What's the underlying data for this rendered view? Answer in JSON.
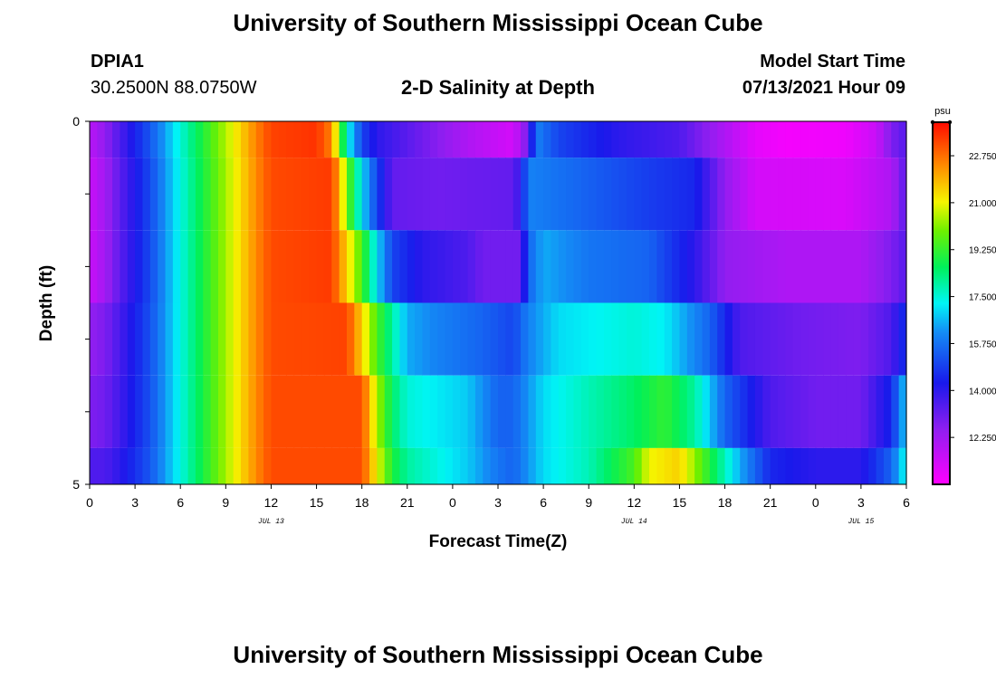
{
  "header": {
    "title": "University of Southern Mississippi Ocean Cube",
    "station_id": "DPIA1",
    "station_coords": "30.2500N  88.0750W",
    "subtitle": "2-D Salinity at Depth",
    "model_start_label": "Model Start Time",
    "model_start_value": "07/13/2021 Hour 09"
  },
  "footer": {
    "title": "University of Southern Mississippi Ocean Cube"
  },
  "chart_data": {
    "type": "heatmap",
    "title": "2-D Salinity at Depth",
    "xlabel": "Forecast Time(Z)",
    "ylabel": "Depth (ft)",
    "x_tick_labels": [
      "0",
      "3",
      "6",
      "9",
      "12",
      "15",
      "18",
      "21",
      "0",
      "3",
      "6",
      "9",
      "12",
      "15",
      "18",
      "21",
      "0",
      "3",
      "6"
    ],
    "date_labels": [
      {
        "label": "JUL 13",
        "hour": 12
      },
      {
        "label": "JUL 14",
        "hour": 36
      },
      {
        "label": "JUL 15",
        "hour": 51
      }
    ],
    "x_range_hours": [
      0,
      54
    ],
    "y_tick_labels": [
      "0",
      "5"
    ],
    "y_range": [
      0,
      5
    ],
    "colorbar": {
      "unit": "psu",
      "range": [
        10.5,
        24.0
      ],
      "tick_labels": [
        "22.750",
        "21.000",
        "19.250",
        "17.500",
        "15.750",
        "14.000",
        "12.250"
      ],
      "tick_values": [
        22.75,
        21.0,
        19.25,
        17.5,
        15.75,
        14.0,
        12.25
      ]
    },
    "layers": [
      {
        "depth_range": [
          0,
          0.5
        ],
        "knots": [
          [
            0,
            11.8
          ],
          [
            1,
            12.5
          ],
          [
            2,
            13.5
          ],
          [
            4,
            15.3
          ],
          [
            6,
            17.5
          ],
          [
            8,
            19.5
          ],
          [
            10,
            21.5
          ],
          [
            11,
            22.5
          ],
          [
            12,
            23.3
          ],
          [
            15,
            23.5
          ],
          [
            16,
            22.5
          ],
          [
            17,
            17.5
          ],
          [
            18,
            15
          ],
          [
            19,
            14
          ],
          [
            22,
            13
          ],
          [
            25,
            12
          ],
          [
            28,
            11.3
          ],
          [
            29,
            13
          ],
          [
            29.5,
            16
          ],
          [
            31,
            15
          ],
          [
            35,
            14
          ],
          [
            39,
            13.5
          ],
          [
            41,
            12.5
          ],
          [
            44,
            11
          ],
          [
            46,
            10.7
          ],
          [
            50,
            10.8
          ],
          [
            52,
            11.5
          ],
          [
            53,
            12.8
          ],
          [
            54,
            13.4
          ]
        ]
      },
      {
        "depth_range": [
          0.5,
          1.5
        ],
        "knots": [
          [
            0,
            11.5
          ],
          [
            1,
            12.2
          ],
          [
            2,
            13.3
          ],
          [
            4,
            15.1
          ],
          [
            6,
            17.4
          ],
          [
            8,
            19.4
          ],
          [
            10,
            21.4
          ],
          [
            11,
            22.4
          ],
          [
            12,
            23.2
          ],
          [
            16,
            23.4
          ],
          [
            16.5,
            22
          ],
          [
            17,
            20
          ],
          [
            18,
            17
          ],
          [
            19,
            15
          ],
          [
            20,
            13.2
          ],
          [
            23,
            13
          ],
          [
            28,
            13.2
          ],
          [
            28.5,
            14
          ],
          [
            29,
            16
          ],
          [
            32,
            15.6
          ],
          [
            36,
            15
          ],
          [
            40,
            14.5
          ],
          [
            42,
            12.5
          ],
          [
            44,
            11.3
          ],
          [
            50,
            11.2
          ],
          [
            53,
            12
          ],
          [
            54,
            13.4
          ]
        ]
      },
      {
        "depth_range": [
          1.5,
          2.5
        ],
        "knots": [
          [
            0,
            11.5
          ],
          [
            1,
            12.2
          ],
          [
            2,
            13.3
          ],
          [
            4,
            15.1
          ],
          [
            6,
            17.4
          ],
          [
            8,
            19.4
          ],
          [
            10,
            21.4
          ],
          [
            11,
            22.4
          ],
          [
            12,
            23.2
          ],
          [
            16,
            23.4
          ],
          [
            17,
            21.5
          ],
          [
            18,
            19.5
          ],
          [
            19,
            17
          ],
          [
            20,
            15
          ],
          [
            22,
            14
          ],
          [
            25,
            13.5
          ],
          [
            26,
            13
          ],
          [
            28.5,
            13
          ],
          [
            29,
            15.5
          ],
          [
            30,
            16.5
          ],
          [
            33,
            15.8
          ],
          [
            37,
            15.5
          ],
          [
            40,
            14
          ],
          [
            42,
            12.5
          ],
          [
            46,
            12
          ],
          [
            51,
            12
          ],
          [
            53,
            12.8
          ],
          [
            54,
            13.4
          ]
        ]
      },
      {
        "depth_range": [
          2.5,
          3.5
        ],
        "knots": [
          [
            0,
            12.5
          ],
          [
            1,
            12.8
          ],
          [
            2,
            13.6
          ],
          [
            4,
            15.2
          ],
          [
            6,
            17.4
          ],
          [
            8,
            19.4
          ],
          [
            10,
            21.4
          ],
          [
            11,
            22.4
          ],
          [
            12,
            23.2
          ],
          [
            17,
            23.3
          ],
          [
            18,
            21.5
          ],
          [
            19,
            19.5
          ],
          [
            20,
            18
          ],
          [
            21,
            16.5
          ],
          [
            23,
            16
          ],
          [
            26,
            15.5
          ],
          [
            28,
            15
          ],
          [
            29,
            16
          ],
          [
            31,
            17
          ],
          [
            36,
            17.5
          ],
          [
            38,
            17.2
          ],
          [
            41,
            15.5
          ],
          [
            43,
            13.5
          ],
          [
            47,
            13
          ],
          [
            51,
            12.8
          ],
          [
            53,
            13.5
          ],
          [
            54,
            14.8
          ]
        ]
      },
      {
        "depth_range": [
          3.5,
          4.5
        ],
        "knots": [
          [
            0,
            12.8
          ],
          [
            1,
            13
          ],
          [
            2,
            13.7
          ],
          [
            4,
            15.2
          ],
          [
            6,
            17.4
          ],
          [
            8,
            19.4
          ],
          [
            10,
            21.4
          ],
          [
            11,
            22.4
          ],
          [
            12,
            23.2
          ],
          [
            18,
            23.2
          ],
          [
            19,
            20.5
          ],
          [
            20,
            18.5
          ],
          [
            21,
            17.5
          ],
          [
            25,
            16.8
          ],
          [
            27,
            15.5
          ],
          [
            28,
            15.5
          ],
          [
            30,
            17
          ],
          [
            33,
            17.8
          ],
          [
            36,
            18.5
          ],
          [
            38,
            19.2
          ],
          [
            40,
            18
          ],
          [
            42,
            15.5
          ],
          [
            45,
            13.5
          ],
          [
            48,
            13
          ],
          [
            51,
            13
          ],
          [
            53,
            14.5
          ],
          [
            54,
            17
          ]
        ]
      },
      {
        "depth_range": [
          4.5,
          5
        ],
        "knots": [
          [
            0,
            13.5
          ],
          [
            1,
            13.5
          ],
          [
            2,
            14
          ],
          [
            4,
            15.3
          ],
          [
            6,
            17.4
          ],
          [
            8,
            19.4
          ],
          [
            10,
            21.4
          ],
          [
            11,
            22.4
          ],
          [
            12,
            23.2
          ],
          [
            18,
            23.2
          ],
          [
            19,
            21
          ],
          [
            20,
            19
          ],
          [
            21,
            18
          ],
          [
            25,
            16.8
          ],
          [
            27,
            15.8
          ],
          [
            28,
            15.5
          ],
          [
            30,
            17
          ],
          [
            33,
            17.8
          ],
          [
            36,
            19.5
          ],
          [
            37,
            21
          ],
          [
            39,
            21.5
          ],
          [
            41,
            19
          ],
          [
            43,
            16.5
          ],
          [
            45,
            14.5
          ],
          [
            48,
            14
          ],
          [
            51,
            14
          ],
          [
            53,
            15.5
          ],
          [
            54,
            17.5
          ]
        ]
      }
    ],
    "grid": false,
    "legend": "colorbar-right"
  }
}
